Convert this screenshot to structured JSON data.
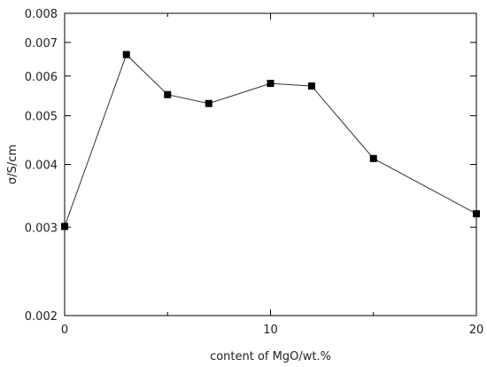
{
  "chart_data": {
    "type": "line",
    "xlabel": "content of MgO/wt.%",
    "ylabel": "σ/S/cm",
    "x_ticks": [
      0,
      10,
      20
    ],
    "x_minor_ticks": [
      5,
      15
    ],
    "xlim": [
      0,
      20
    ],
    "y_scale": "log",
    "ylim": [
      0.002,
      0.008
    ],
    "y_ticks": [
      0.002,
      0.003,
      0.004,
      0.005,
      0.006,
      0.007,
      0.008
    ],
    "y_tick_labels": [
      "0.002",
      "0.003",
      "0.004",
      "0.005",
      "0.006",
      "0.007",
      "0.008"
    ],
    "grid": false,
    "legend": "none",
    "series": [
      {
        "marker": "square",
        "color": "#000000",
        "points": [
          {
            "x": 0,
            "y": 0.00301
          },
          {
            "x": 3,
            "y": 0.00662
          },
          {
            "x": 5,
            "y": 0.00551
          },
          {
            "x": 7,
            "y": 0.00529
          },
          {
            "x": 10,
            "y": 0.0058
          },
          {
            "x": 12,
            "y": 0.00573
          },
          {
            "x": 15,
            "y": 0.00411
          },
          {
            "x": 20,
            "y": 0.00319
          }
        ]
      }
    ]
  }
}
